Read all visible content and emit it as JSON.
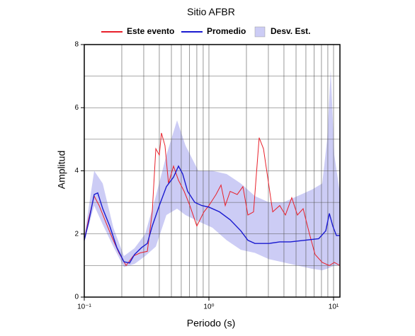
{
  "chart_data": {
    "type": "line",
    "title": "Sitio AFBR",
    "xlabel": "Periodo (s)",
    "ylabel": "Amplitud",
    "xscale": "log",
    "xlim": [
      0.1,
      11.25
    ],
    "ylim": [
      0,
      8
    ],
    "xticks": [
      {
        "value": 0.1,
        "label": "10⁻¹"
      },
      {
        "value": 1,
        "label": "10⁰"
      },
      {
        "value": 10,
        "label": "10¹"
      }
    ],
    "xminor": [
      0.2,
      0.3,
      0.4,
      0.5,
      0.6,
      0.7,
      0.8,
      0.9,
      2,
      3,
      4,
      5,
      6,
      7,
      8,
      9
    ],
    "yticks": [
      0,
      2,
      4,
      6,
      8
    ],
    "yminor": [
      1,
      3,
      5,
      7
    ],
    "grid": true,
    "series": [
      {
        "name": "Este evento",
        "kind": "line",
        "color": "#e8202a",
        "x": [
          0.1,
          0.108,
          0.1201,
          0.1316,
          0.1462,
          0.1666,
          0.1898,
          0.2165,
          0.2466,
          0.281,
          0.3206,
          0.351,
          0.375,
          0.4,
          0.416,
          0.444,
          0.474,
          0.52,
          0.57,
          0.633,
          0.703,
          0.8,
          0.912,
          1.0,
          1.14,
          1.25,
          1.352,
          1.48,
          1.687,
          1.874,
          2.054,
          2.28,
          2.53,
          2.74,
          2.96,
          3.25,
          3.7,
          4.11,
          4.62,
          5.13,
          5.7,
          6.41,
          7.11,
          8.11,
          9.25,
          10.14,
          11.25
        ],
        "values": [
          1.8,
          2.45,
          3.2,
          2.9,
          2.45,
          1.9,
          1.4,
          1.0,
          1.3,
          1.4,
          1.45,
          2.7,
          4.7,
          4.5,
          5.2,
          4.8,
          3.6,
          4.15,
          3.7,
          3.35,
          2.9,
          2.25,
          2.7,
          2.9,
          3.25,
          3.55,
          2.9,
          3.35,
          3.25,
          3.5,
          2.6,
          2.7,
          5.05,
          4.7,
          3.8,
          2.7,
          2.9,
          2.6,
          3.15,
          2.6,
          2.8,
          2.0,
          1.35,
          1.1,
          1.0,
          1.1,
          1.0
        ]
      },
      {
        "name": "Promedio",
        "kind": "line",
        "color": "#1a1ad0",
        "x": [
          0.1,
          0.108,
          0.1201,
          0.1282,
          0.1406,
          0.16,
          0.1825,
          0.208,
          0.231,
          0.253,
          0.2886,
          0.3206,
          0.351,
          0.4,
          0.456,
          0.52,
          0.57,
          0.616,
          0.675,
          0.77,
          0.877,
          1.0,
          1.216,
          1.48,
          1.802,
          2.054,
          2.34,
          2.67,
          3.04,
          3.7,
          4.5,
          5.85,
          7.6,
          8.66,
          9.25,
          9.86,
          10.54,
          11.25
        ],
        "values": [
          1.8,
          2.35,
          3.25,
          3.3,
          2.8,
          2.25,
          1.57,
          1.12,
          1.08,
          1.35,
          1.57,
          1.7,
          2.25,
          2.9,
          3.5,
          3.8,
          4.15,
          3.9,
          3.35,
          3.0,
          2.9,
          2.85,
          2.7,
          2.45,
          2.1,
          1.8,
          1.7,
          1.7,
          1.7,
          1.75,
          1.75,
          1.8,
          1.85,
          2.1,
          2.65,
          2.25,
          1.95,
          1.95
        ]
      },
      {
        "name": "Desv. Est.",
        "kind": "band",
        "color": "#ccccf5",
        "x": [
          0.1,
          0.1201,
          0.1406,
          0.171,
          0.208,
          0.253,
          0.308,
          0.375,
          0.456,
          0.555,
          0.649,
          0.822,
          1.067,
          1.388,
          1.802,
          2.34,
          3.04,
          3.95,
          5.13,
          6.67,
          8.11,
          8.89,
          9.49,
          10.14,
          11.25
        ],
        "upper": [
          1.9,
          4.0,
          3.6,
          2.2,
          1.3,
          1.55,
          2.0,
          3.2,
          4.5,
          5.6,
          4.8,
          4.0,
          4.0,
          3.9,
          3.6,
          3.2,
          3.0,
          3.0,
          3.2,
          3.4,
          3.6,
          5.0,
          7.2,
          4.5,
          3.3
        ],
        "lower": [
          1.75,
          2.9,
          2.3,
          1.6,
          0.95,
          1.05,
          1.3,
          1.6,
          2.6,
          2.8,
          2.6,
          2.4,
          2.2,
          1.8,
          1.5,
          1.4,
          1.2,
          1.1,
          1.0,
          0.9,
          0.85,
          0.9,
          0.95,
          1.0,
          1.0
        ]
      }
    ]
  }
}
